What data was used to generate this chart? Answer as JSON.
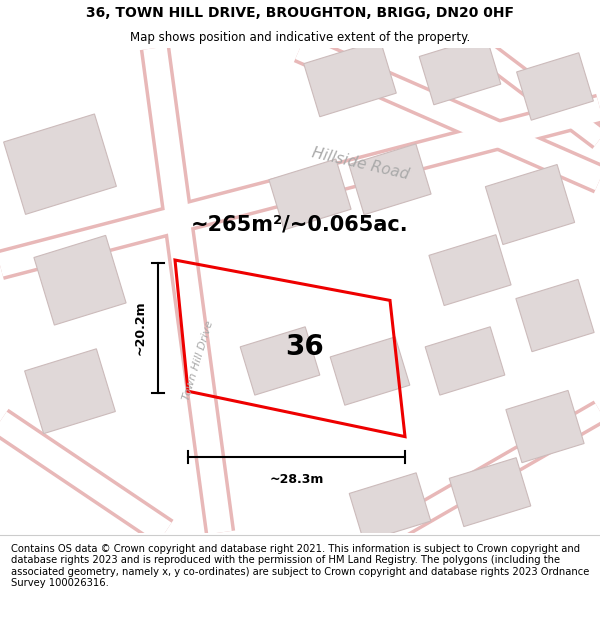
{
  "title": "36, TOWN HILL DRIVE, BROUGHTON, BRIGG, DN20 0HF",
  "subtitle": "Map shows position and indicative extent of the property.",
  "area_label": "~265m²/~0.065ac.",
  "width_label": "~28.3m",
  "height_label": "~20.2m",
  "number_label": "36",
  "road_label_1": "Hillside Road",
  "road_label_2": "Town Hill Drive",
  "footer": "Contains OS data © Crown copyright and database right 2021. This information is subject to Crown copyright and database rights 2023 and is reproduced with the permission of HM Land Registry. The polygons (including the associated geometry, namely x, y co-ordinates) are subject to Crown copyright and database rights 2023 Ordnance Survey 100026316.",
  "map_bg": "#f5efef",
  "road_fill": "#ffffff",
  "road_outline": "#e8b8b8",
  "building_fill": "#e0d8d8",
  "building_outline": "#ccbbbb",
  "plot_color": "#ee0000",
  "title_fontsize": 10,
  "subtitle_fontsize": 8.5,
  "footer_fontsize": 7.2,
  "area_fontsize": 15,
  "number_fontsize": 20,
  "dim_fontsize": 9
}
